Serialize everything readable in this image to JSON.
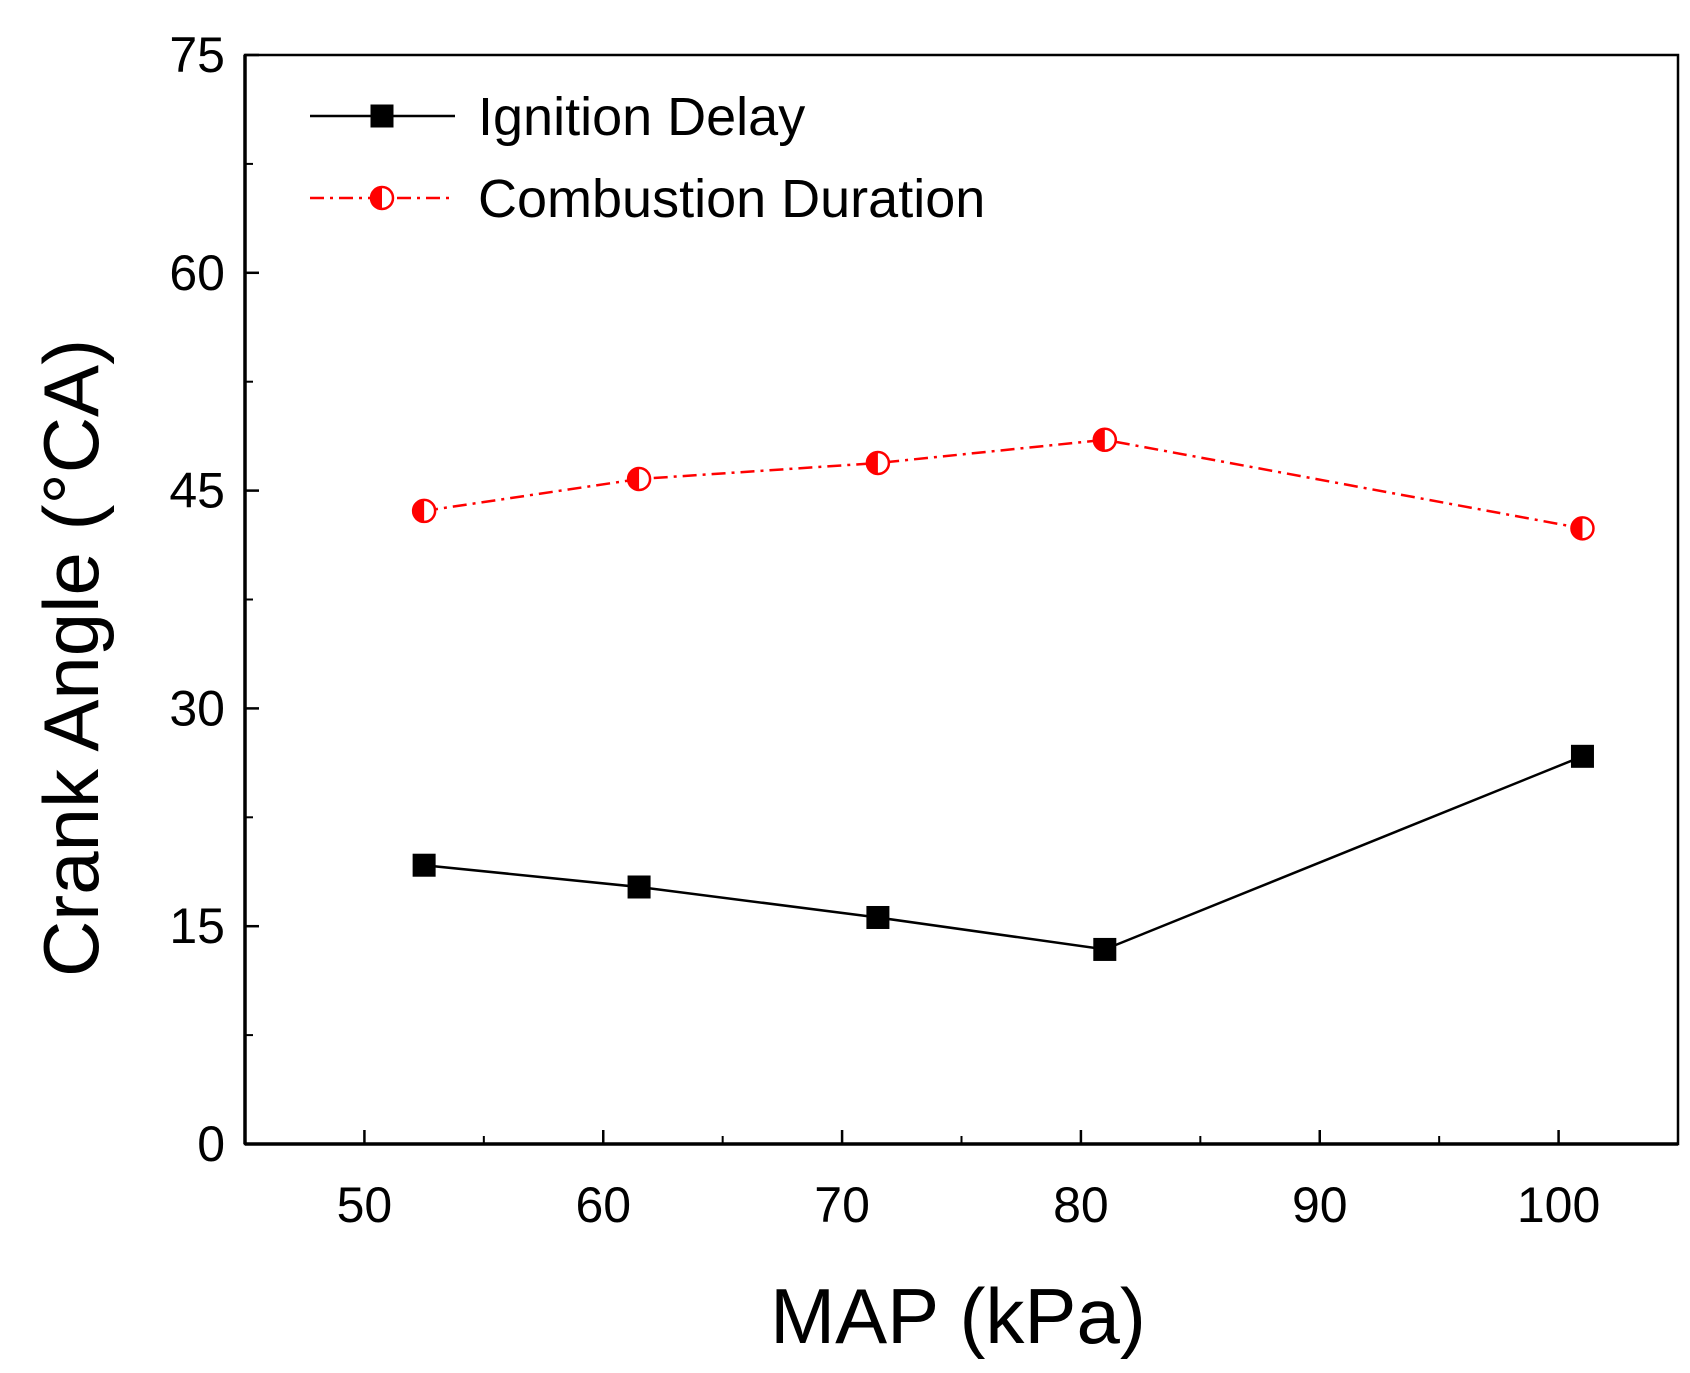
{
  "chart_data": {
    "type": "line",
    "title": "",
    "xlabel": "MAP (kPa)",
    "ylabel": "Crank Angle (°CA)",
    "xlim": [
      45,
      105
    ],
    "ylim": [
      0,
      75
    ],
    "x_ticks": [
      50,
      60,
      70,
      80,
      90,
      100
    ],
    "y_ticks": [
      0,
      15,
      30,
      45,
      60,
      75
    ],
    "x_minor_ticks": [
      55,
      65,
      75,
      85,
      95
    ],
    "y_minor_ticks": [
      7.5,
      22.5,
      37.5,
      52.5,
      67.5
    ],
    "x_tick_labels": [
      "50",
      "60",
      "70",
      "80",
      "90",
      "100"
    ],
    "y_tick_labels": [
      "0",
      "15",
      "30",
      "45",
      "60",
      "75"
    ],
    "legend_position": "top-left",
    "grid": false,
    "series": [
      {
        "name": "Ignition Delay",
        "color": "#000000",
        "line_style": "solid",
        "marker": "filled-square",
        "x": [
          52.5,
          61.5,
          71.5,
          81.0,
          101.0
        ],
        "y": [
          19.2,
          17.7,
          15.6,
          13.4,
          26.7
        ]
      },
      {
        "name": "Combustion Duration",
        "color": "#ff0000",
        "line_style": "dash-dot",
        "marker": "half-filled-circle",
        "x": [
          52.5,
          61.5,
          71.5,
          81.0,
          101.0
        ],
        "y": [
          43.6,
          45.8,
          46.9,
          48.5,
          42.4
        ]
      }
    ]
  }
}
